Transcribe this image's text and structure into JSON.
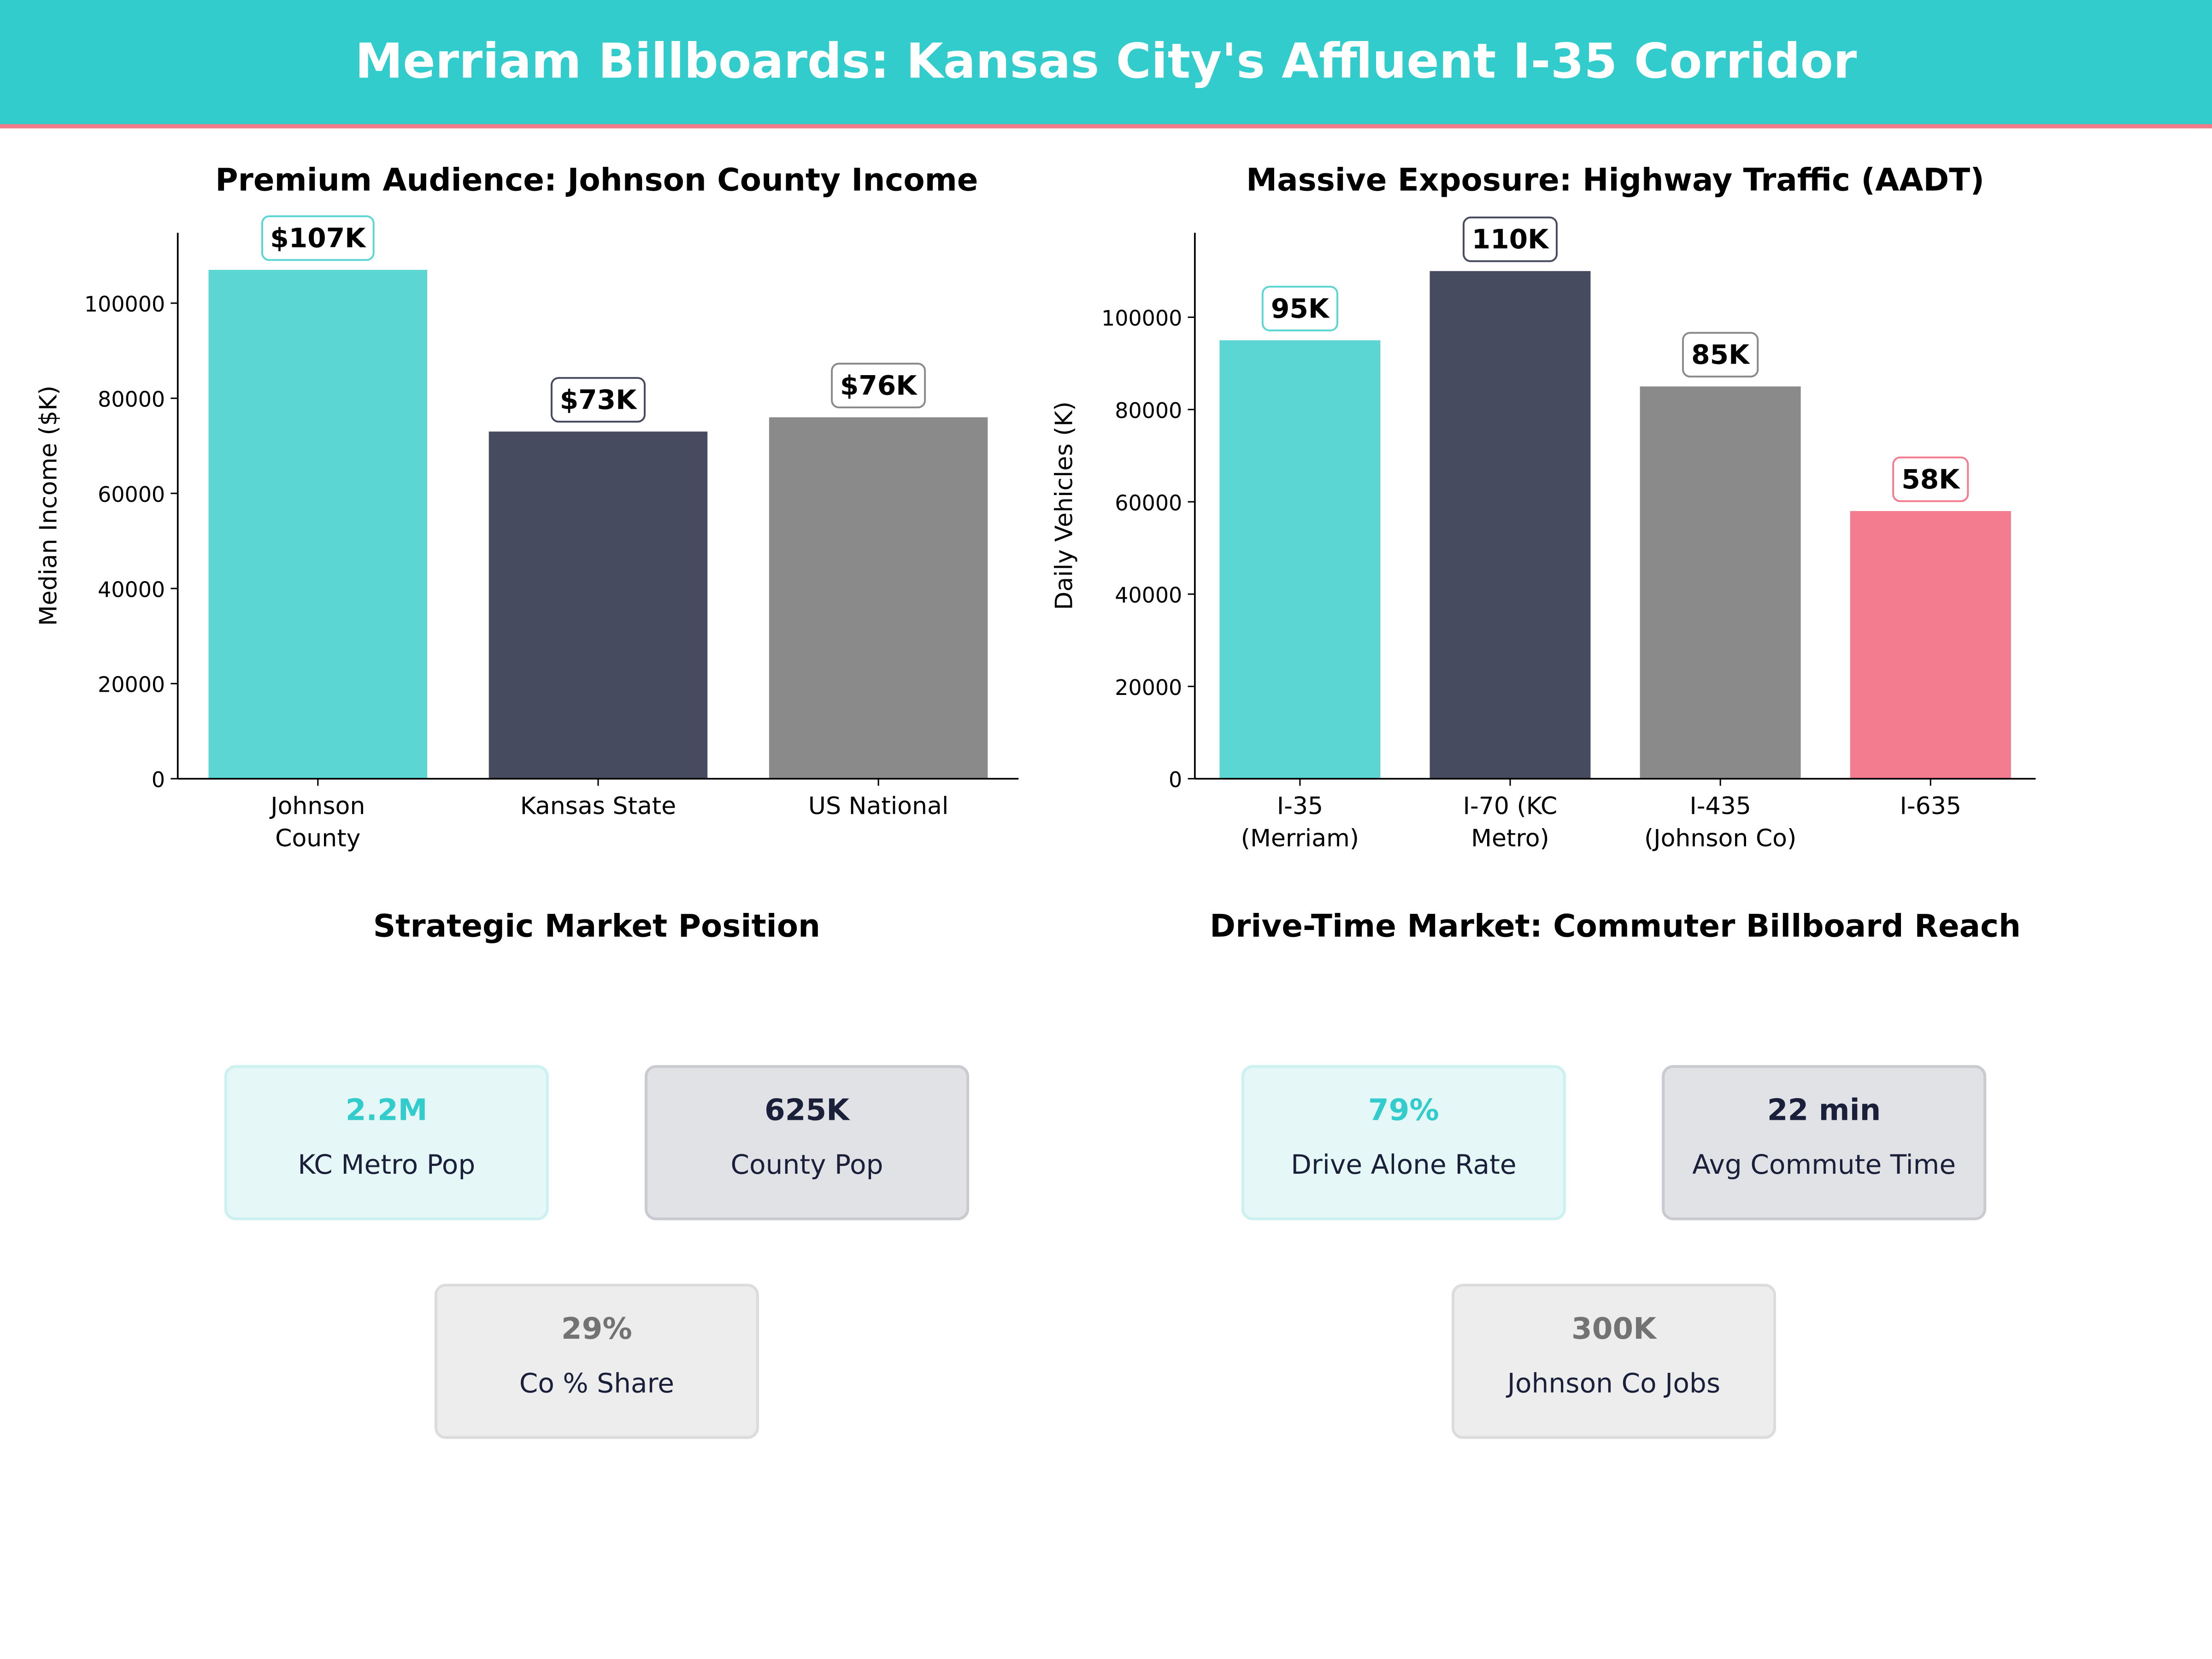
{
  "header": {
    "title": "Merriam Billboards: Kansas City's Affluent I-35 Corridor"
  },
  "colors": {
    "teal": "#5CD6D3",
    "dark": "#474B60",
    "gray": "#8A8A8A",
    "pink": "#F47C8F",
    "header": "#33CCCC"
  },
  "chart_data": [
    {
      "type": "bar",
      "title": "Premium Audience: Johnson County Income",
      "xlabel": "",
      "ylabel": "Median Income ($K)",
      "categories": [
        [
          "Johnson",
          "County"
        ],
        [
          "Kansas State"
        ],
        [
          "US National"
        ]
      ],
      "values": [
        107000,
        73000,
        76000
      ],
      "data_labels": [
        "$107K",
        "$73K",
        "$76K"
      ],
      "bar_colors": [
        "#5CD6D3",
        "#474B60",
        "#8A8A8A"
      ],
      "yticks": [
        0,
        20000,
        40000,
        60000,
        80000,
        100000
      ],
      "ylim": [
        0,
        114800
      ],
      "grid": false
    },
    {
      "type": "bar",
      "title": "Massive Exposure: Highway Traffic (AADT)",
      "xlabel": "",
      "ylabel": "Daily Vehicles (K)",
      "categories": [
        [
          "I-35",
          "(Merriam)"
        ],
        [
          "I-70 (KC",
          "Metro)"
        ],
        [
          "I-435",
          "(Johnson Co)"
        ],
        [
          "I-635"
        ]
      ],
      "values": [
        95000,
        110000,
        85000,
        58000
      ],
      "data_labels": [
        "95K",
        "110K",
        "85K",
        "58K"
      ],
      "bar_colors": [
        "#5CD6D3",
        "#474B60",
        "#8A8A8A",
        "#F47C8F"
      ],
      "yticks": [
        0,
        20000,
        40000,
        60000,
        80000,
        100000
      ],
      "ylim": [
        0,
        118300
      ],
      "grid": false
    }
  ],
  "market": {
    "title": "Strategic Market Position",
    "cards": [
      {
        "value": "2.2M",
        "label": "KC Metro Pop"
      },
      {
        "value": "625K",
        "label": "County Pop"
      },
      {
        "value": "29%",
        "label": "Co % Share"
      }
    ]
  },
  "drive": {
    "title": "Drive-Time Market: Commuter Billboard Reach",
    "cards": [
      {
        "value": "79%",
        "label": "Drive Alone Rate"
      },
      {
        "value": "22 min",
        "label": "Avg Commute Time"
      },
      {
        "value": "300K",
        "label": "Johnson Co Jobs"
      }
    ]
  }
}
